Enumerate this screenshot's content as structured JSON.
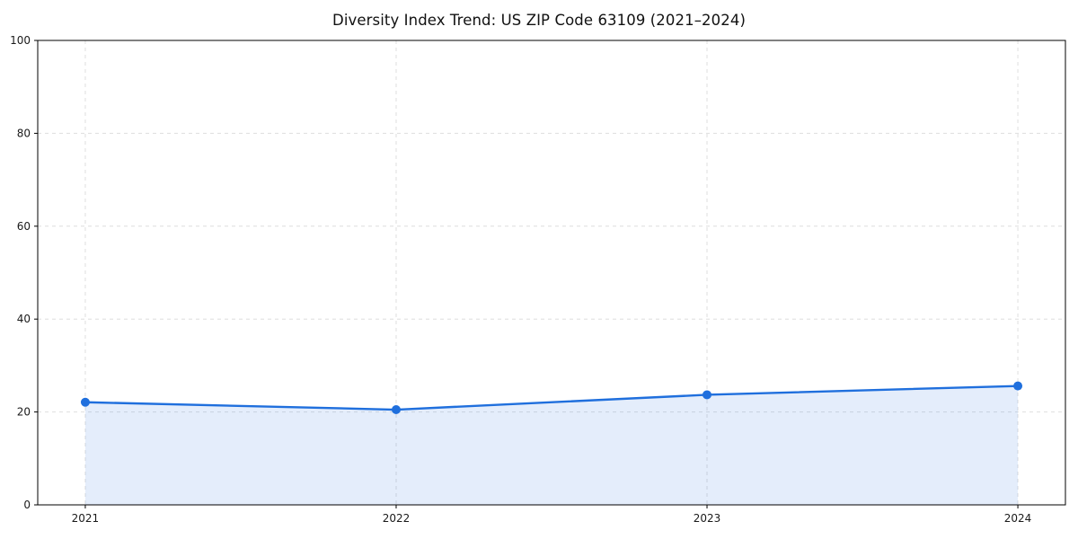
{
  "chart_data": {
    "type": "area",
    "title": "Diversity Index Trend: US ZIP Code 63109 (2021–2024)",
    "x": [
      2021,
      2022,
      2023,
      2024
    ],
    "series": [
      {
        "name": "Diversity Index",
        "values": [
          22.1,
          20.5,
          23.7,
          25.6
        ]
      }
    ],
    "xlabel": "",
    "ylabel": "",
    "xlim_padding_fraction": 0.051,
    "ylim": [
      0,
      100
    ],
    "yticks": [
      0,
      20,
      40,
      60,
      80,
      100
    ],
    "xticks": [
      2021,
      2022,
      2023,
      2024
    ],
    "grid": true,
    "grid_style": "dashed",
    "legend": "none",
    "colors": {
      "line": "#1f6fdd",
      "marker": "#1f6fdd",
      "fill": "rgba(31, 111, 221, 0.12)",
      "grid": "#dedede",
      "axis": "#000000",
      "tick_label": "#1a1a1a",
      "background": "#ffffff"
    }
  }
}
